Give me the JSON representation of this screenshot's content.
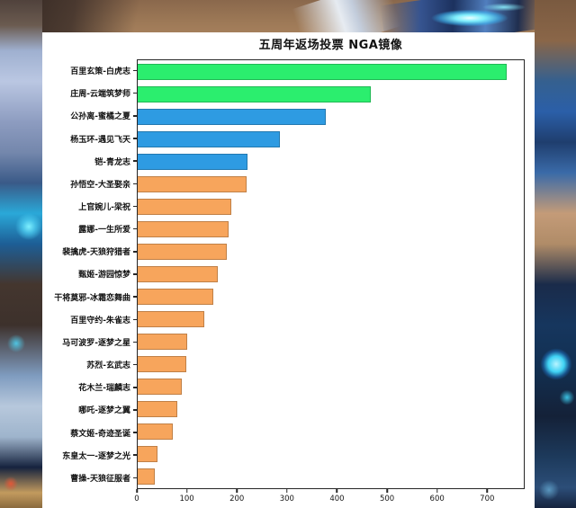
{
  "chart": {
    "title": "五周年返场投票 NGA镜像"
  },
  "chart_data": {
    "type": "bar",
    "orientation": "horizontal",
    "title": "五周年返场投票 NGA镜像",
    "categories": [
      "百里玄策-白虎志",
      "庄周-云端筑梦师",
      "公孙离-蜜橘之夏",
      "杨玉环-遇见飞天",
      "铠-青龙志",
      "孙悟空-大圣娶亲",
      "上官婉儿-梁祝",
      "露娜-一生所爱",
      "裴擒虎-天狼狩猎者",
      "甄姬-游园惊梦",
      "干将莫邪-冰霜恋舞曲",
      "百里守约-朱雀志",
      "马可波罗-逐梦之星",
      "苏烈-玄武志",
      "花木兰-瑞麟志",
      "哪吒-逐梦之翼",
      "蔡文姬-奇迹圣诞",
      "东皇太一-逐梦之光",
      "曹操-天狼征服者"
    ],
    "values": [
      740,
      468,
      377,
      286,
      220,
      218,
      187,
      182,
      179,
      161,
      151,
      133,
      100,
      97,
      88,
      79,
      70,
      39,
      35
    ],
    "bar_colors": [
      "#2BEE6E",
      "#2BEE6E",
      "#2E9BE2",
      "#2E9BE2",
      "#2E9BE2",
      "#F7A55C",
      "#F7A55C",
      "#F7A55C",
      "#F7A55C",
      "#F7A55C",
      "#F7A55C",
      "#F7A55C",
      "#F7A55C",
      "#F7A55C",
      "#F7A55C",
      "#F7A55C",
      "#F7A55C",
      "#F7A55C",
      "#F7A55C"
    ],
    "x_ticks": [
      0,
      100,
      200,
      300,
      400,
      500,
      600,
      700
    ],
    "xlim": [
      0,
      775
    ],
    "xlabel": "",
    "ylabel": "",
    "grid": false,
    "legend_position": "none"
  },
  "colors": {
    "green": "#2BEE6E",
    "blue": "#2E9BE2",
    "orange": "#F7A55C",
    "axis": "#262626",
    "panel_background": "#ffffff"
  }
}
